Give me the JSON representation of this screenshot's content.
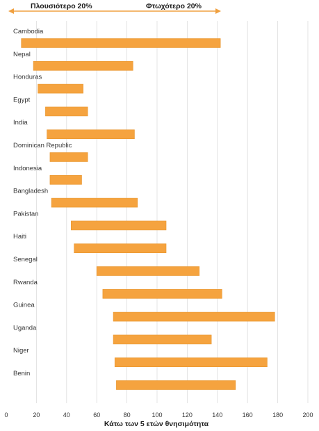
{
  "chart_data": {
    "type": "bar",
    "orientation": "horizontal-range",
    "categories": [
      "Cambodia",
      "Nepal",
      "Honduras",
      "Egypt",
      "India",
      "Dominican Republic",
      "Indonesia",
      "Bangladesh",
      "Pakistan",
      "Haiti",
      "Senegal",
      "Rwanda",
      "Guinea",
      "Uganda",
      "Niger",
      "Benin"
    ],
    "series": [
      {
        "low": [
          10,
          18,
          21,
          26,
          27,
          29,
          29,
          30,
          43,
          45,
          60,
          64,
          71,
          71,
          72,
          73
        ],
        "high": [
          142,
          84,
          51,
          54,
          85,
          54,
          50,
          87,
          106,
          106,
          128,
          143,
          178,
          136,
          173,
          152
        ]
      }
    ],
    "range_labels": {
      "left": "Πλουσιότερο 20%",
      "right": "Φτωχότερο 20%"
    },
    "xlabel": "Κάτω των 5 ετών θνησιμότητα",
    "xlim": [
      0,
      200
    ],
    "xticks": [
      "0",
      "20",
      "40",
      "60",
      "80",
      "100",
      "120",
      "140",
      "160",
      "180",
      "200"
    ],
    "grid": true,
    "colors": {
      "bar": "#f5a33f",
      "bar_edge": "#e8962f",
      "grid": "#dddddd",
      "arrow": "#f0a040",
      "text": "#222222"
    }
  }
}
